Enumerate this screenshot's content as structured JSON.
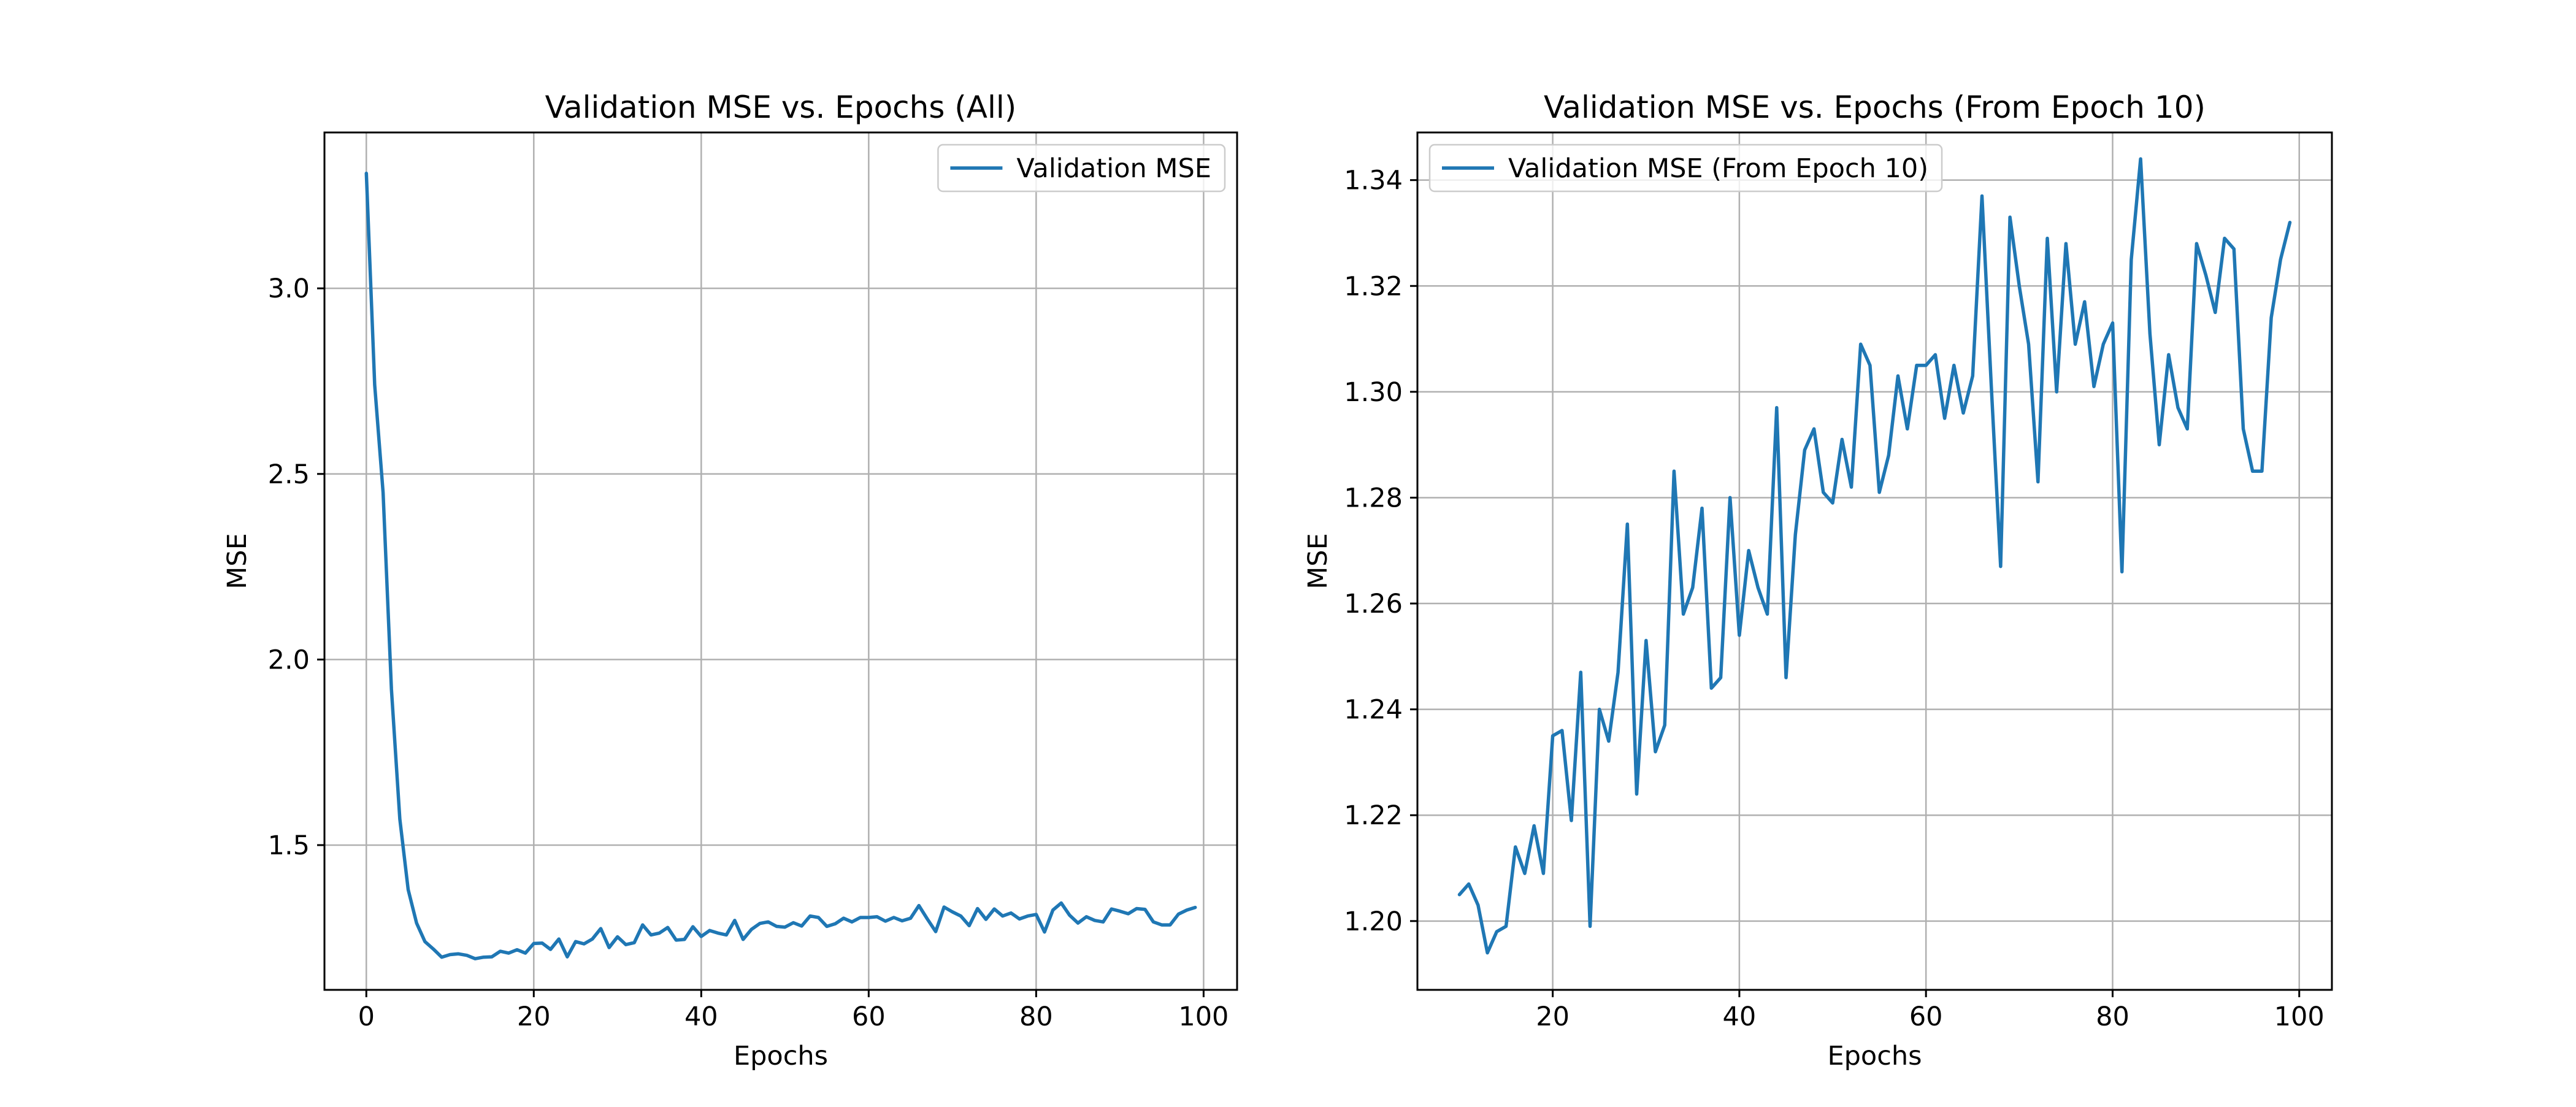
{
  "colors": {
    "series": "#1f77b4",
    "grid": "#b0b0b0"
  },
  "chart_data": [
    {
      "type": "line",
      "title": "Validation MSE vs. Epochs (All)",
      "xlabel": "Epochs",
      "ylabel": "MSE",
      "xlim": [
        -5,
        104
      ],
      "ylim": [
        1.11,
        3.42
      ],
      "xticks": [
        0,
        20,
        40,
        60,
        80,
        100
      ],
      "yticks": [
        1.5,
        2.0,
        2.5,
        3.0
      ],
      "ytick_labels": [
        "1.5",
        "2.0",
        "2.5",
        "3.0"
      ],
      "grid": true,
      "legend_loc": "upper right",
      "series": [
        {
          "name": "Validation MSE",
          "x": [
            0,
            1,
            2,
            3,
            4,
            5,
            6,
            7,
            8,
            9,
            10,
            11,
            12,
            13,
            14,
            15,
            16,
            17,
            18,
            19,
            20,
            21,
            22,
            23,
            24,
            25,
            26,
            27,
            28,
            29,
            30,
            31,
            32,
            33,
            34,
            35,
            36,
            37,
            38,
            39,
            40,
            41,
            42,
            43,
            44,
            45,
            46,
            47,
            48,
            49,
            50,
            51,
            52,
            53,
            54,
            55,
            56,
            57,
            58,
            59,
            60,
            61,
            62,
            63,
            64,
            65,
            66,
            67,
            68,
            69,
            70,
            71,
            72,
            73,
            74,
            75,
            76,
            77,
            78,
            79,
            80,
            81,
            82,
            83,
            84,
            85,
            86,
            87,
            88,
            89,
            90,
            91,
            92,
            93,
            94,
            95,
            96,
            97,
            98,
            99
          ],
          "values": [
            3.31,
            2.74,
            2.45,
            1.92,
            1.57,
            1.38,
            1.29,
            1.24,
            1.22,
            1.198,
            1.205,
            1.207,
            1.203,
            1.194,
            1.198,
            1.199,
            1.214,
            1.209,
            1.218,
            1.209,
            1.235,
            1.236,
            1.219,
            1.247,
            1.199,
            1.24,
            1.234,
            1.247,
            1.275,
            1.224,
            1.253,
            1.232,
            1.237,
            1.285,
            1.258,
            1.263,
            1.278,
            1.244,
            1.246,
            1.28,
            1.254,
            1.27,
            1.263,
            1.258,
            1.297,
            1.246,
            1.273,
            1.289,
            1.293,
            1.281,
            1.279,
            1.291,
            1.282,
            1.309,
            1.305,
            1.281,
            1.288,
            1.303,
            1.293,
            1.305,
            1.305,
            1.307,
            1.295,
            1.305,
            1.296,
            1.303,
            1.337,
            1.301,
            1.267,
            1.333,
            1.32,
            1.309,
            1.283,
            1.329,
            1.3,
            1.328,
            1.309,
            1.317,
            1.301,
            1.309,
            1.313,
            1.266,
            1.325,
            1.344,
            1.311,
            1.29,
            1.307,
            1.297,
            1.293,
            1.328,
            1.322,
            1.315,
            1.329,
            1.327,
            1.293,
            1.285,
            1.285,
            1.314,
            1.325,
            1.332
          ]
        }
      ]
    },
    {
      "type": "line",
      "title": "Validation MSE vs. Epochs (From Epoch 10)",
      "xlabel": "Epochs",
      "ylabel": "MSE",
      "xlim": [
        5.5,
        103.5
      ],
      "ylim": [
        1.187,
        1.349
      ],
      "xticks": [
        20,
        40,
        60,
        80,
        100
      ],
      "yticks": [
        1.2,
        1.22,
        1.24,
        1.26,
        1.28,
        1.3,
        1.32,
        1.34
      ],
      "ytick_labels": [
        "1.20",
        "1.22",
        "1.24",
        "1.26",
        "1.28",
        "1.30",
        "1.32",
        "1.34"
      ],
      "grid": true,
      "legend_loc": "upper left",
      "series": [
        {
          "name": "Validation MSE (From Epoch 10)",
          "x": [
            10,
            11,
            12,
            13,
            14,
            15,
            16,
            17,
            18,
            19,
            20,
            21,
            22,
            23,
            24,
            25,
            26,
            27,
            28,
            29,
            30,
            31,
            32,
            33,
            34,
            35,
            36,
            37,
            38,
            39,
            40,
            41,
            42,
            43,
            44,
            45,
            46,
            47,
            48,
            49,
            50,
            51,
            52,
            53,
            54,
            55,
            56,
            57,
            58,
            59,
            60,
            61,
            62,
            63,
            64,
            65,
            66,
            67,
            68,
            69,
            70,
            71,
            72,
            73,
            74,
            75,
            76,
            77,
            78,
            79,
            80,
            81,
            82,
            83,
            84,
            85,
            86,
            87,
            88,
            89,
            90,
            91,
            92,
            93,
            94,
            95,
            96,
            97,
            98,
            99
          ],
          "values": [
            1.205,
            1.207,
            1.203,
            1.194,
            1.198,
            1.199,
            1.214,
            1.209,
            1.218,
            1.209,
            1.235,
            1.236,
            1.219,
            1.247,
            1.199,
            1.24,
            1.234,
            1.247,
            1.275,
            1.224,
            1.253,
            1.232,
            1.237,
            1.285,
            1.258,
            1.263,
            1.278,
            1.244,
            1.246,
            1.28,
            1.254,
            1.27,
            1.263,
            1.258,
            1.297,
            1.246,
            1.273,
            1.289,
            1.293,
            1.281,
            1.279,
            1.291,
            1.282,
            1.309,
            1.305,
            1.281,
            1.288,
            1.303,
            1.293,
            1.305,
            1.305,
            1.307,
            1.295,
            1.305,
            1.296,
            1.303,
            1.337,
            1.301,
            1.267,
            1.333,
            1.32,
            1.309,
            1.283,
            1.329,
            1.3,
            1.328,
            1.309,
            1.317,
            1.301,
            1.309,
            1.313,
            1.266,
            1.325,
            1.344,
            1.311,
            1.29,
            1.307,
            1.297,
            1.293,
            1.328,
            1.322,
            1.315,
            1.329,
            1.327,
            1.293,
            1.285,
            1.285,
            1.314,
            1.325,
            1.332
          ]
        }
      ]
    }
  ]
}
